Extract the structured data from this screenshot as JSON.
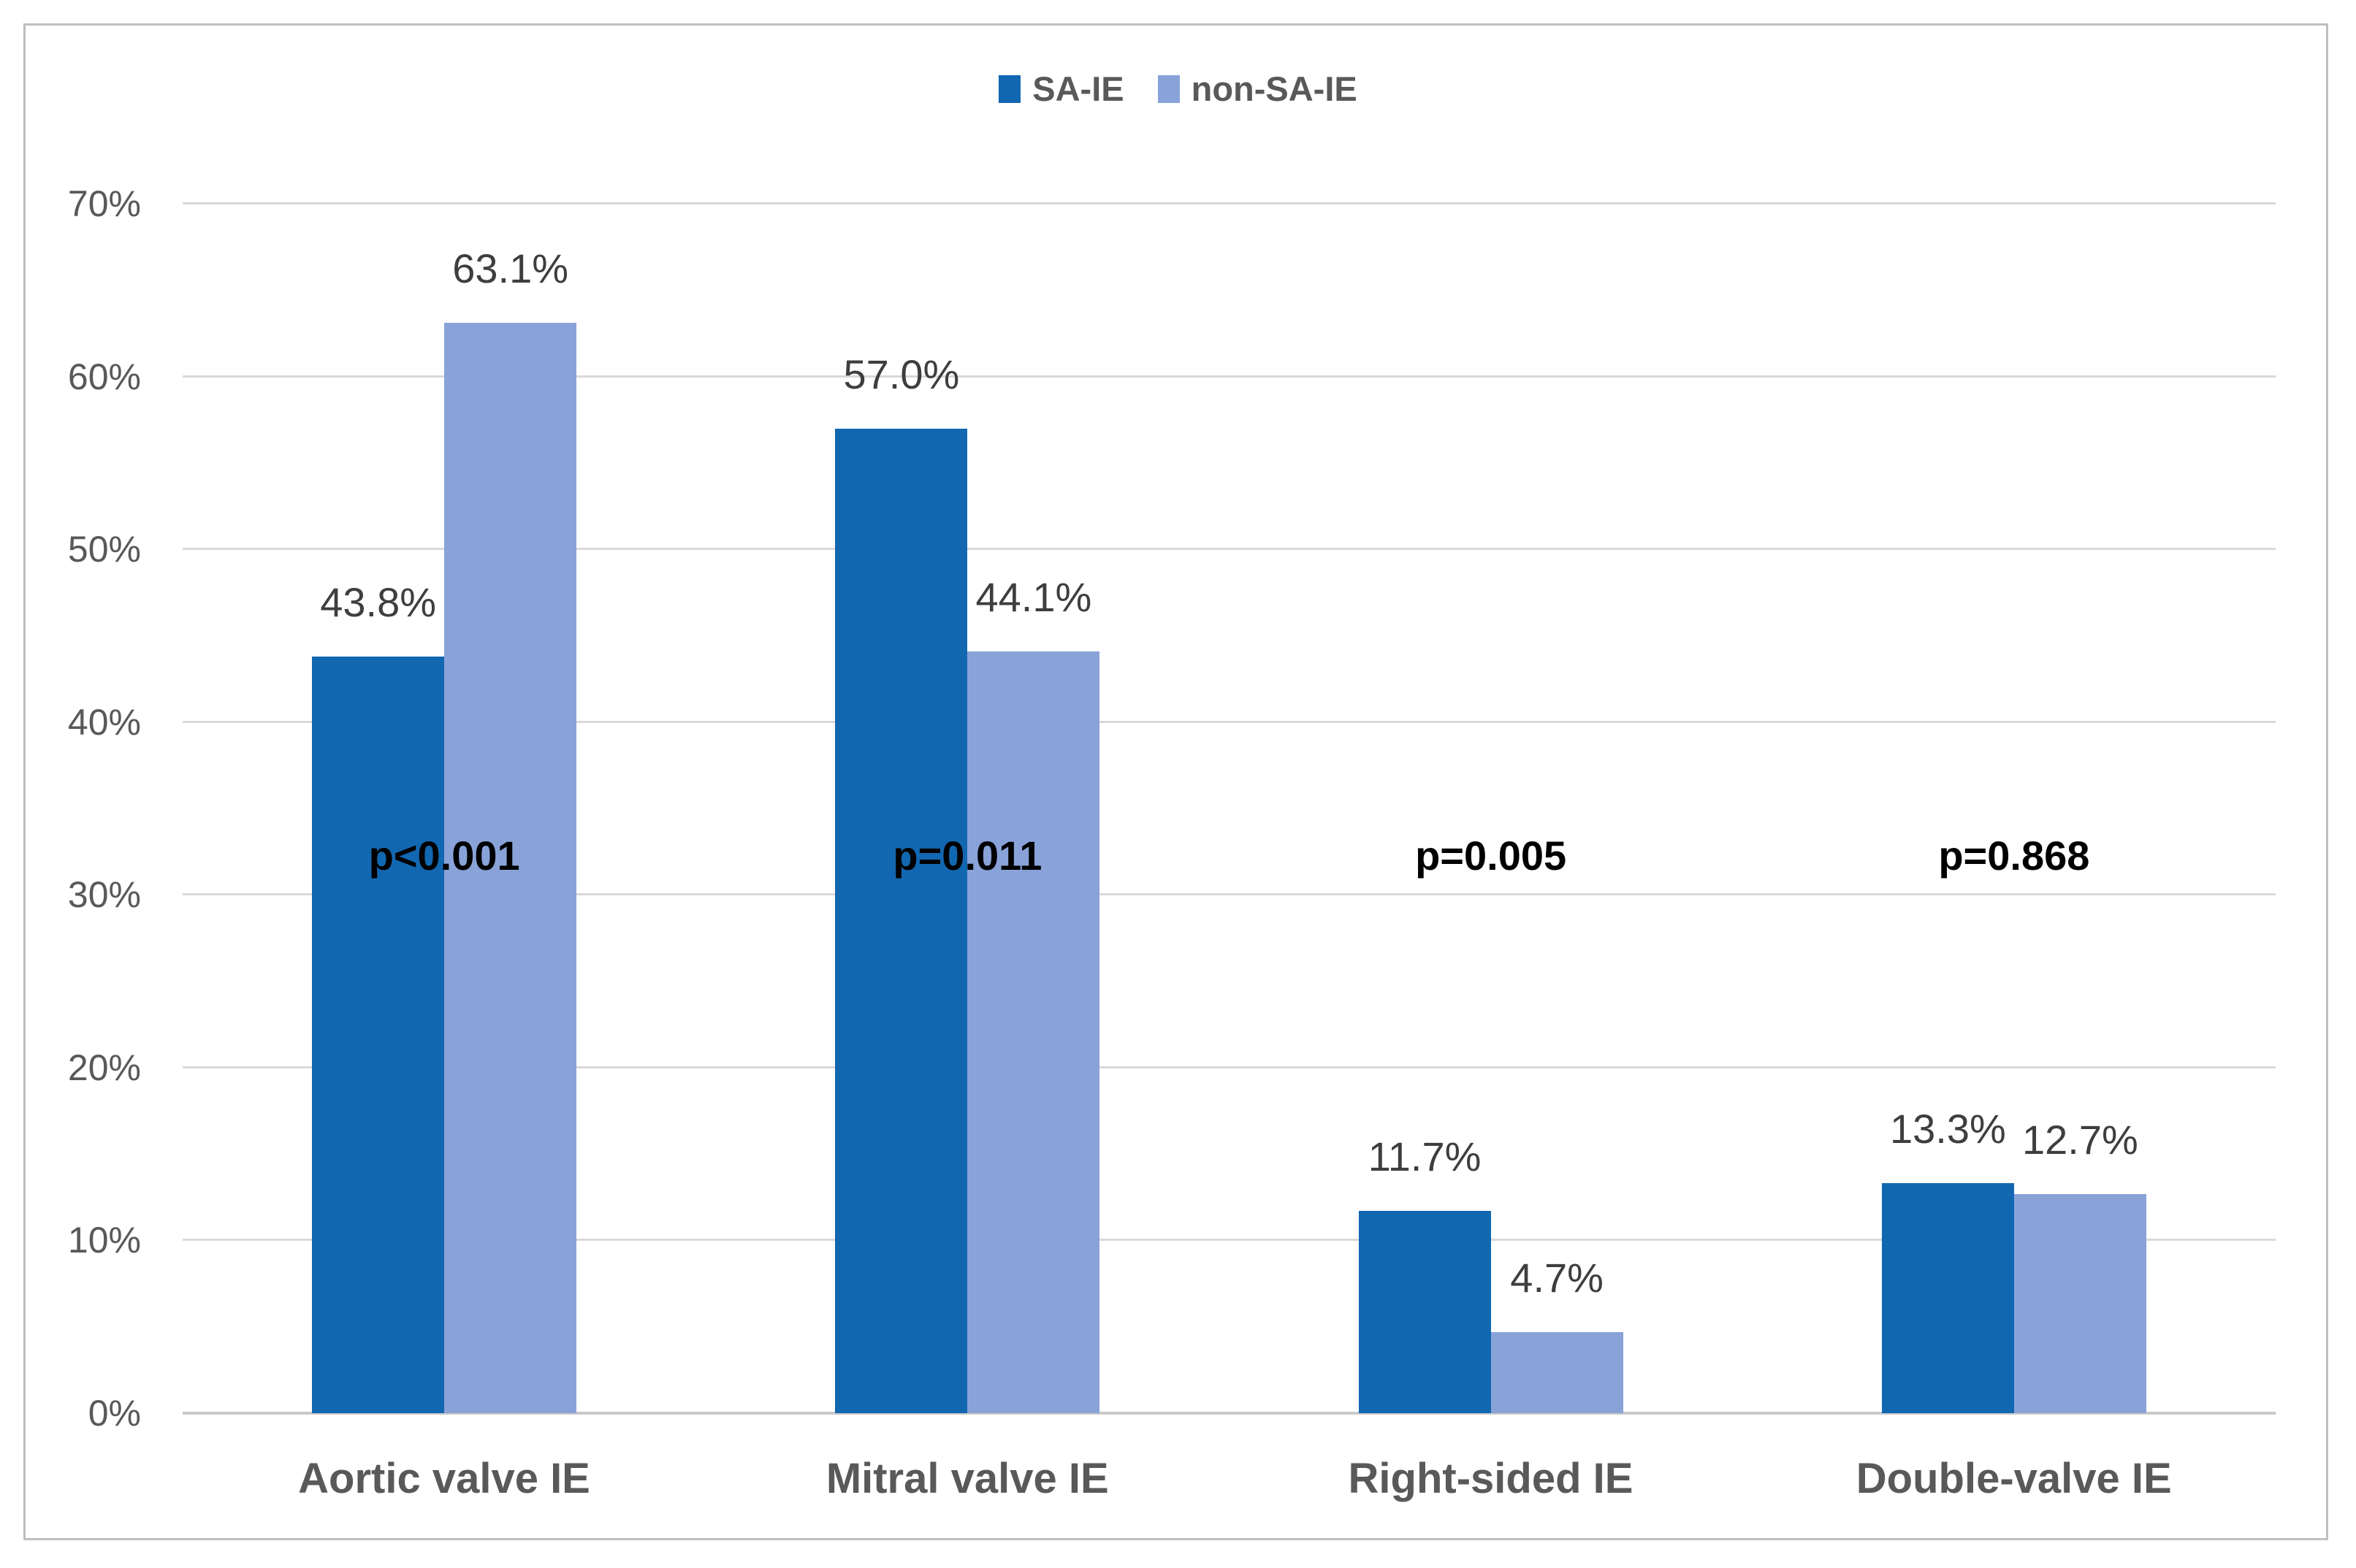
{
  "chart_data": {
    "type": "bar",
    "title": "",
    "categories": [
      "Aortic valve IE",
      "Mitral valve IE",
      "Right-sided IE",
      "Double-valve IE"
    ],
    "series": [
      {
        "name": "SA-IE",
        "color": "#1267B1",
        "values": [
          43.8,
          57.0,
          11.7,
          13.3
        ],
        "value_labels": [
          "43.8%",
          "57.0%",
          "11.7%",
          "13.3%"
        ]
      },
      {
        "name": "non-SA-IE",
        "color": "#89A3D9",
        "values": [
          63.1,
          44.1,
          4.7,
          12.7
        ],
        "value_labels": [
          "63.1%",
          "44.1%",
          "4.7%",
          "12.7%"
        ]
      }
    ],
    "p_values": [
      "p<0.001",
      "p=0.011",
      "p=0.005",
      "p=0.868"
    ],
    "xlabel": "",
    "ylabel": "",
    "ylim": [
      0,
      70
    ],
    "ytick_step": 10,
    "grid": true,
    "legend_position": "top"
  },
  "y_axis": {
    "tick_labels": [
      "0%",
      "10%",
      "20%",
      "30%",
      "40%",
      "50%",
      "60%",
      "70%"
    ]
  },
  "colors": {
    "series_dark_blue": "#1267B1",
    "series_light_blue": "#89A3D9",
    "gridline": "#D9D9D9",
    "axis_baseline": "#C9C9C9",
    "chart_border": "#BFBFBF",
    "text_gray": "#595959",
    "value_label_gray": "#3E3E3E",
    "p_value_black": "#000000"
  }
}
